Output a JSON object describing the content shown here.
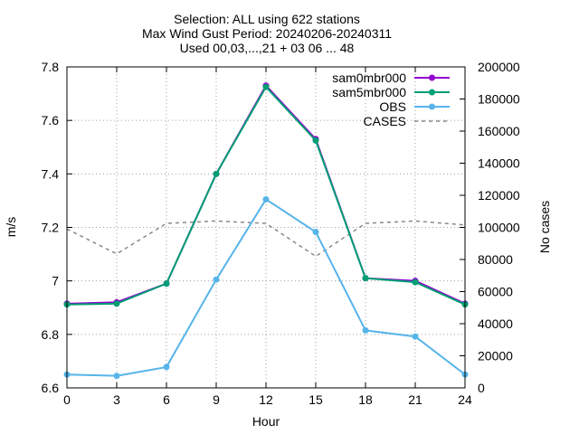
{
  "chart_data": {
    "type": "line",
    "title_lines": [
      "Selection: ALL using   622 stations",
      "Max Wind Gust   Period: 20240206-20240311",
      "Used 00,03,...,21 + 03 06 ... 48"
    ],
    "xlabel": "Hour",
    "ylabel": "m/s",
    "y2label": "No cases",
    "x": [
      0,
      3,
      6,
      9,
      12,
      15,
      18,
      21,
      24
    ],
    "xlim": [
      0,
      24
    ],
    "ylim": [
      6.6,
      7.8
    ],
    "y2lim": [
      0,
      200000
    ],
    "xticks": [
      "0",
      "3",
      "6",
      "9",
      "12",
      "15",
      "18",
      "21",
      "24"
    ],
    "yticks": [
      "6.6",
      "6.8",
      "7",
      "7.2",
      "7.4",
      "7.6",
      "7.8"
    ],
    "y2ticks": [
      "0",
      "20000",
      "40000",
      "60000",
      "80000",
      "100000",
      "120000",
      "140000",
      "160000",
      "180000",
      "200000"
    ],
    "grid": true,
    "legend_position": "top-right",
    "series": [
      {
        "name": "sam0mbr000",
        "color": "#9400d3",
        "axis": "y1",
        "dash": false,
        "marker": true,
        "values": [
          6.915,
          6.92,
          6.99,
          7.4,
          7.73,
          7.53,
          7.01,
          7.0,
          6.915
        ]
      },
      {
        "name": "sam5mbr000",
        "color": "#009e73",
        "axis": "y1",
        "dash": false,
        "marker": true,
        "values": [
          6.912,
          6.915,
          6.99,
          7.4,
          7.725,
          7.525,
          7.01,
          6.995,
          6.912
        ]
      },
      {
        "name": "OBS",
        "color": "#56b4e9",
        "axis": "y1",
        "dash": false,
        "marker": true,
        "values": [
          6.65,
          6.645,
          6.678,
          7.005,
          7.305,
          7.183,
          6.815,
          6.792,
          6.65
        ]
      },
      {
        "name": "CASES",
        "color": "#888888",
        "axis": "y2",
        "dash": true,
        "marker": false,
        "values": [
          99000,
          83500,
          102500,
          104000,
          102500,
          82000,
          102500,
          104000,
          101500
        ]
      }
    ]
  }
}
